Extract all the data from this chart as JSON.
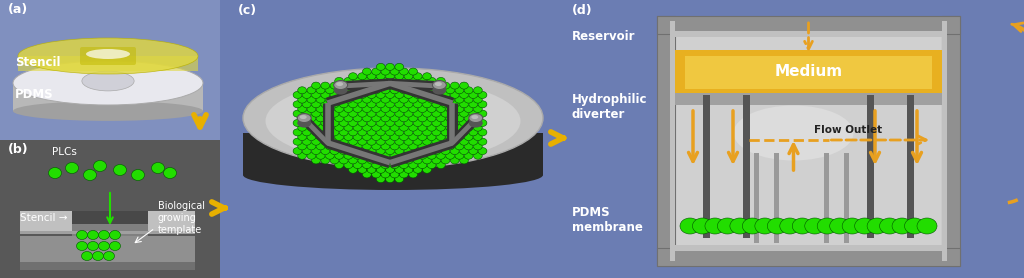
{
  "bg_color": "#6b7db3",
  "panel_a": {
    "label": "(a)",
    "stencil_label": "Stencil",
    "pdms_label": "PDMS",
    "stencil_color": "#e0d840",
    "stencil_alpha": 0.75
  },
  "panel_b": {
    "label": "(b)",
    "plcs_label": "PLCs",
    "stencil_label": "Stencil →",
    "bio_label": "Biological\ngrowing\ntemplate",
    "cell_color": "#22dd00",
    "bg_color": "#606060"
  },
  "panel_c": {
    "label": "(c)",
    "disk_color": "#c8c8c8",
    "disk_dark": "#404040",
    "hex_cell_color": "#22dd00"
  },
  "panel_d": {
    "label": "(d)",
    "reservoir_label": "Reservoir",
    "medium_label": "Medium",
    "medium_color": "#e8b020",
    "hydrophilic_label": "Hydrophilic\ndiverter",
    "flow_outlet_label": "Flow Outlet",
    "pdms_label": "PDMS\nmembrane",
    "cell_color": "#22dd00",
    "arrow_color": "#e8a020",
    "outer_color": "#909090",
    "inner_color": "#c8c8c8",
    "mid_color": "#b0b0b0"
  },
  "arrow_color": "#e8b000",
  "figsize": [
    10.24,
    2.78
  ],
  "dpi": 100
}
